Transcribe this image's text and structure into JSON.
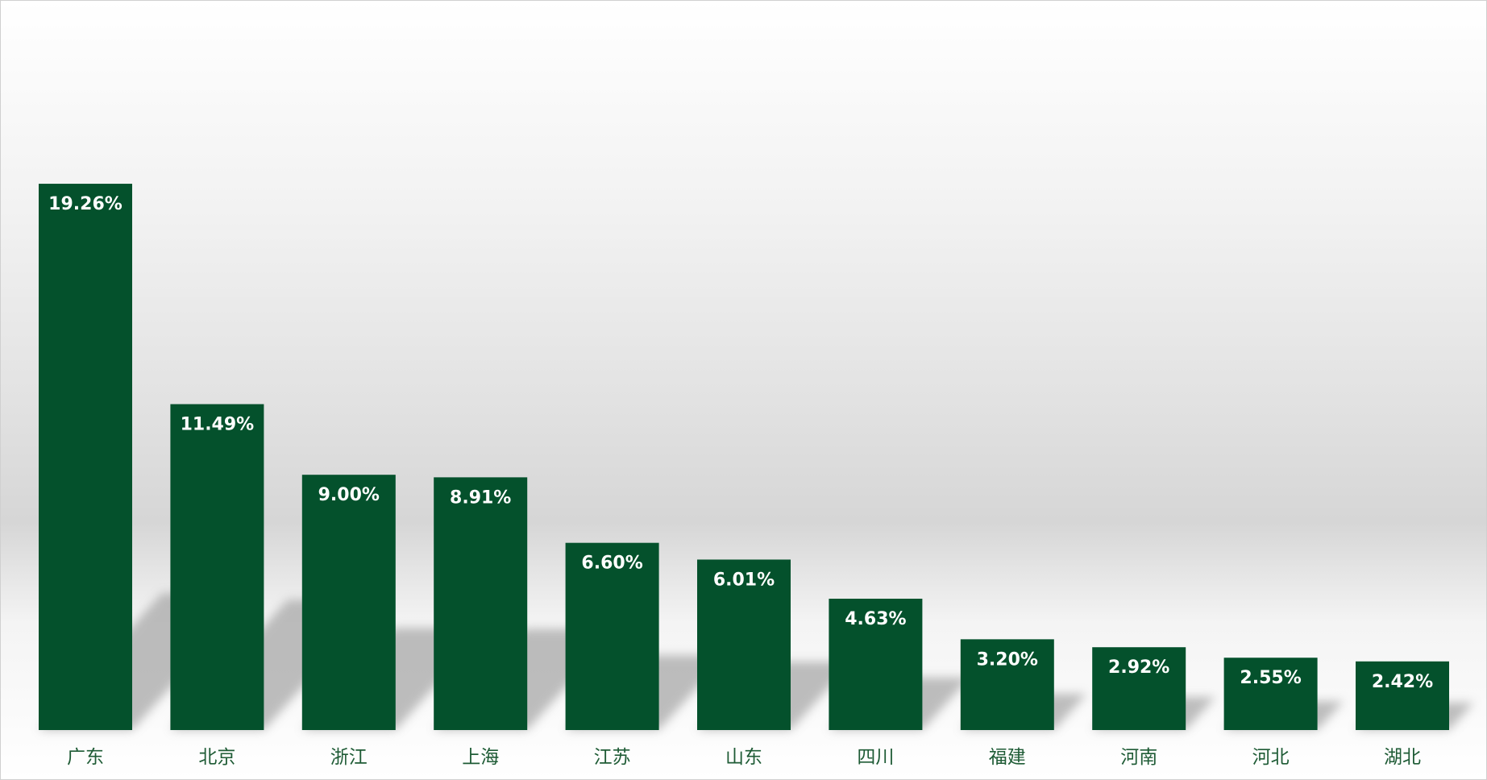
{
  "chart_data": {
    "type": "bar",
    "categories": [
      "广东",
      "北京",
      "浙江",
      "上海",
      "江苏",
      "山东",
      "四川",
      "福建",
      "河南",
      "河北",
      "湖北"
    ],
    "values": [
      19.26,
      11.49,
      9.0,
      8.91,
      6.6,
      6.01,
      4.63,
      3.2,
      2.92,
      2.55,
      2.42
    ],
    "value_labels": [
      "19.26%",
      "11.49%",
      "9.00%",
      "8.91%",
      "6.60%",
      "6.01%",
      "4.63%",
      "3.20%",
      "2.92%",
      "2.55%",
      "2.42%"
    ],
    "title": "",
    "xlabel": "",
    "ylabel": "",
    "ylim": [
      0,
      26
    ],
    "grid": false,
    "legend": "none",
    "data_label_position": "inside-top",
    "colors": {
      "bar": "#04512c",
      "value_label": "#ffffff",
      "category_label": "#1e5b35",
      "shadow": "#a8a8a8"
    }
  }
}
